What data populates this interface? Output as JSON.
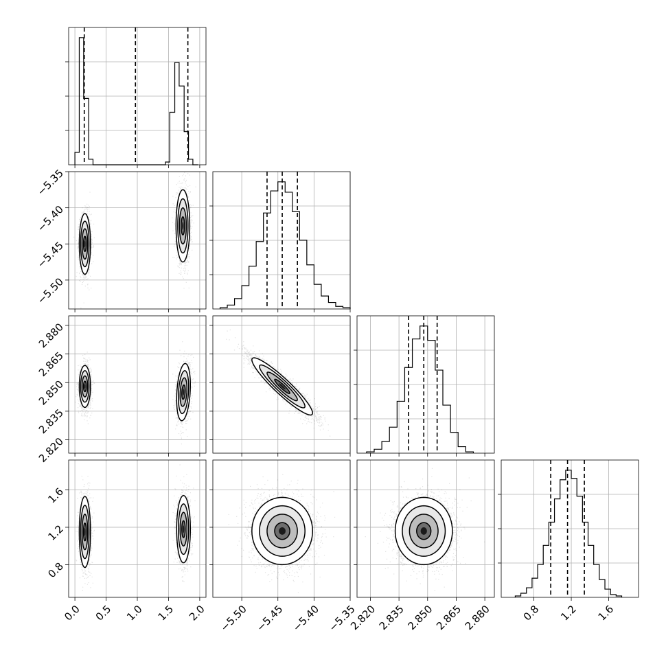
{
  "chart_data": {
    "type": "scatter",
    "figure": "corner",
    "grid": true,
    "parameters": [
      {
        "range": [
          -0.1,
          2.1
        ],
        "ticks": [
          0.0,
          0.5,
          1.0,
          1.5,
          2.0
        ],
        "tick_labels": [
          "0.0",
          "0.5",
          "1.0",
          "1.5",
          "2.0"
        ]
      },
      {
        "range": [
          -5.54,
          -5.35
        ],
        "ticks": [
          -5.5,
          -5.45,
          -5.4,
          -5.35
        ],
        "tick_labels": [
          "−5.50",
          "−5.45",
          "−5.40",
          "−5.35"
        ]
      },
      {
        "range": [
          2.813,
          2.885
        ],
        "ticks": [
          2.82,
          2.835,
          2.85,
          2.865,
          2.88
        ],
        "tick_labels": [
          "2.820",
          "2.835",
          "2.850",
          "2.865",
          "2.880"
        ]
      },
      {
        "range": [
          0.45,
          1.92
        ],
        "ticks": [
          0.8,
          1.2,
          1.6
        ],
        "tick_labels": [
          "0.8",
          "1.2",
          "1.6"
        ]
      }
    ],
    "histograms": [
      {
        "param": 0,
        "bin_edges": [
          0.0,
          0.07,
          0.14,
          0.22,
          0.29,
          0.37,
          0.45,
          1.45,
          1.52,
          1.6,
          1.67,
          1.75,
          1.82,
          1.89,
          1.97
        ],
        "counts": [
          0.09,
          0.92,
          0.48,
          0.04,
          0.0,
          0.0,
          0.0,
          0.02,
          0.38,
          0.74,
          0.57,
          0.24,
          0.04,
          0.0
        ],
        "quantiles": [
          0.15,
          0.97,
          1.81
        ]
      },
      {
        "param": 1,
        "bin_edges": [
          -5.53,
          -5.52,
          -5.51,
          -5.5,
          -5.49,
          -5.48,
          -5.47,
          -5.46,
          -5.45,
          -5.44,
          -5.43,
          -5.42,
          -5.41,
          -5.4,
          -5.39,
          -5.38,
          -5.37,
          -5.36,
          -5.35
        ],
        "counts": [
          0.01,
          0.03,
          0.08,
          0.18,
          0.33,
          0.52,
          0.74,
          0.91,
          0.98,
          0.9,
          0.75,
          0.53,
          0.34,
          0.19,
          0.1,
          0.05,
          0.02,
          0.01
        ],
        "quantiles": [
          -5.465,
          -5.444,
          -5.423
        ]
      },
      {
        "param": 2,
        "bin_edges": [
          2.818,
          2.822,
          2.826,
          2.83,
          2.834,
          2.838,
          2.842,
          2.846,
          2.85,
          2.854,
          2.858,
          2.862,
          2.866,
          2.87,
          2.874
        ],
        "counts": [
          0.01,
          0.03,
          0.09,
          0.2,
          0.4,
          0.66,
          0.88,
          0.98,
          0.87,
          0.64,
          0.37,
          0.16,
          0.05,
          0.01
        ],
        "quantiles": [
          2.84,
          2.848,
          2.855
        ]
      },
      {
        "param": 3,
        "bin_edges": [
          0.6,
          0.66,
          0.72,
          0.78,
          0.84,
          0.9,
          0.96,
          1.02,
          1.08,
          1.14,
          1.2,
          1.26,
          1.32,
          1.38,
          1.44,
          1.5,
          1.56,
          1.62,
          1.68,
          1.74
        ],
        "counts": [
          0.01,
          0.03,
          0.07,
          0.14,
          0.24,
          0.38,
          0.55,
          0.72,
          0.86,
          0.93,
          0.87,
          0.74,
          0.55,
          0.38,
          0.24,
          0.13,
          0.06,
          0.02,
          0.01
        ],
        "quantiles": [
          0.98,
          1.16,
          1.34
        ]
      }
    ],
    "joint": [
      {
        "x": 0,
        "y": 1,
        "modes": [
          {
            "mx": 0.16,
            "my": -5.45,
            "sx": 0.045,
            "sy": 0.021,
            "rho": 0.0,
            "w": 0.5
          },
          {
            "mx": 1.73,
            "my": -5.425,
            "sx": 0.055,
            "sy": 0.025,
            "rho": 0.0,
            "w": 0.5
          }
        ]
      },
      {
        "x": 0,
        "y": 2,
        "modes": [
          {
            "mx": 0.16,
            "my": 2.848,
            "sx": 0.045,
            "sy": 0.0055,
            "rho": 0.0,
            "w": 0.5
          },
          {
            "mx": 1.74,
            "my": 2.845,
            "sx": 0.055,
            "sy": 0.0075,
            "rho": 0.25,
            "w": 0.5
          }
        ]
      },
      {
        "x": 0,
        "y": 3,
        "modes": [
          {
            "mx": 0.16,
            "my": 1.15,
            "sx": 0.045,
            "sy": 0.19,
            "rho": 0.0,
            "w": 0.5
          },
          {
            "mx": 1.74,
            "my": 1.18,
            "sx": 0.055,
            "sy": 0.18,
            "rho": 0.0,
            "w": 0.5
          }
        ]
      },
      {
        "x": 1,
        "y": 2,
        "modes": [
          {
            "mx": -5.444,
            "my": 2.848,
            "sx": 0.021,
            "sy": 0.0075,
            "rho": -0.93,
            "w": 1.0
          }
        ]
      },
      {
        "x": 1,
        "y": 3,
        "modes": [
          {
            "mx": -5.444,
            "my": 1.16,
            "sx": 0.021,
            "sy": 0.18,
            "rho": 0.0,
            "w": 1.0
          }
        ]
      },
      {
        "x": 2,
        "y": 3,
        "modes": [
          {
            "mx": 2.848,
            "my": 1.16,
            "sx": 0.0075,
            "sy": 0.18,
            "rho": 0.0,
            "w": 1.0
          }
        ]
      }
    ]
  }
}
